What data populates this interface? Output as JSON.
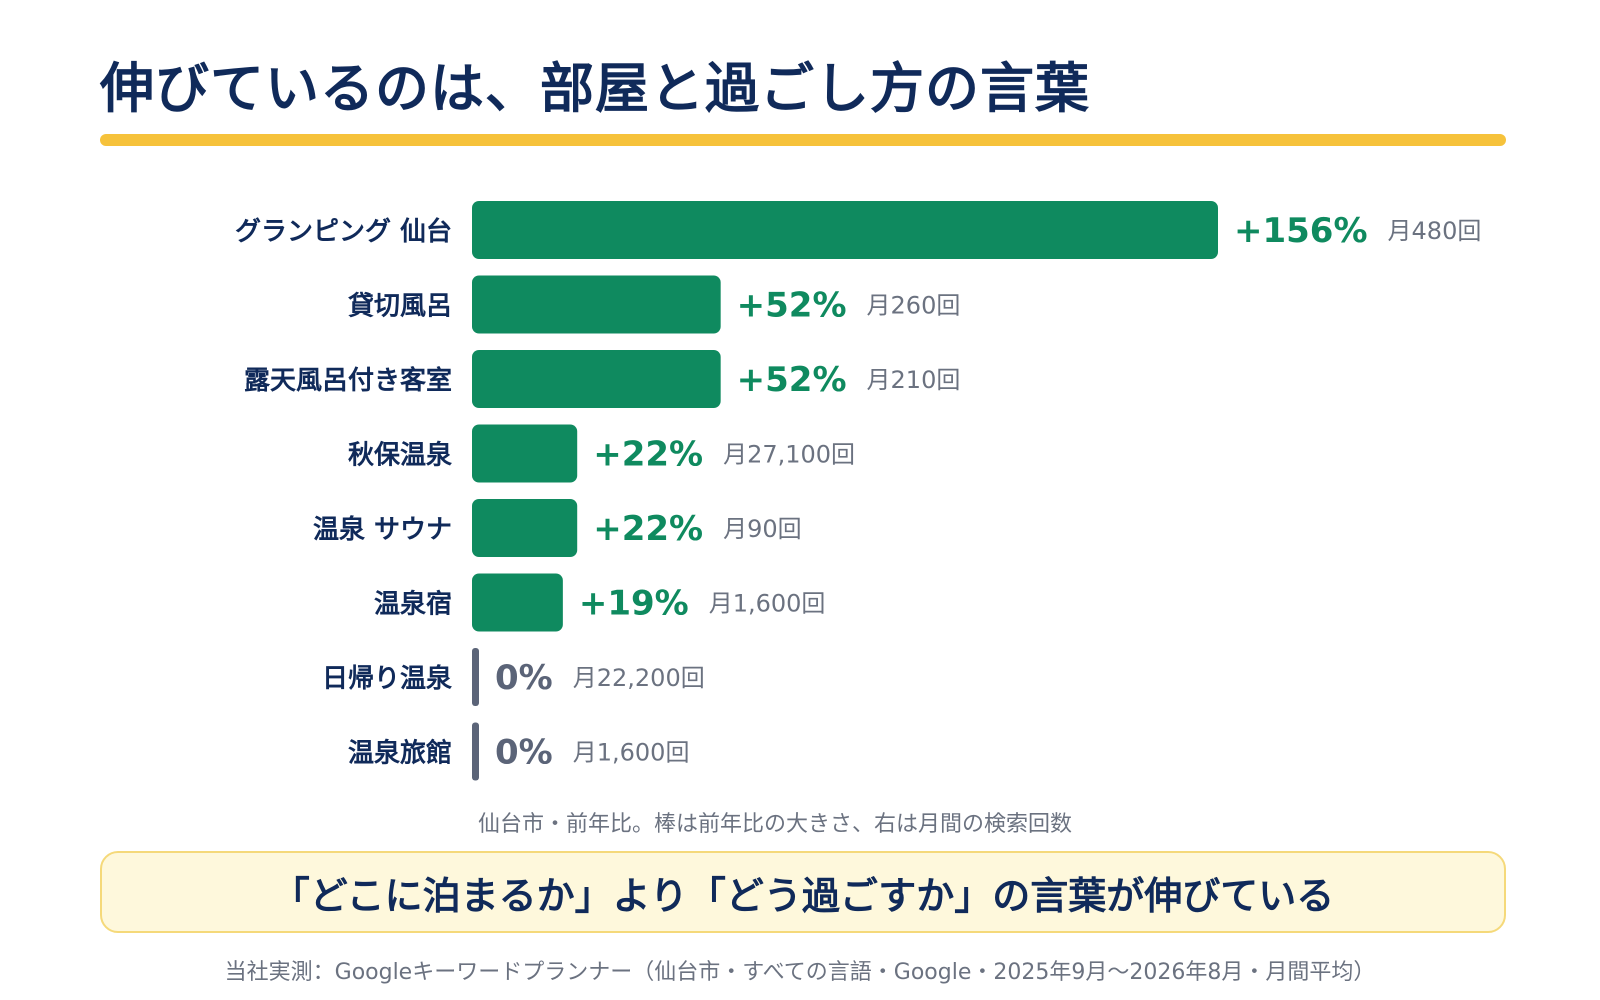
{
  "title": "伸びているのは、部屋と過ごし方の言葉",
  "caption": "仙台市・前年比。棒は前年比の大きさ、右は月間の検索回数",
  "callout": "「どこに泊まるか」より「どう過ごすか」の言葉が伸びている",
  "source": "当社実測：Googleキーワードプランナー（仙台市・すべての言語・Google・2025年9月〜2026年8月・月間平均）",
  "colors": {
    "title": "#102a5a",
    "accent_rule": "#f6c23b",
    "growth_bar": "#0f8a5f",
    "zero_bar": "#5b6478",
    "muted_text": "#6b7280",
    "callout_bg": "#fef8dc"
  },
  "chart_data": {
    "type": "bar",
    "orientation": "horizontal",
    "categories": [
      "グランピング 仙台",
      "貸切風呂",
      "露天風呂付き客室",
      "秋保温泉",
      "温泉 サウナ",
      "温泉宿",
      "日帰り温泉",
      "温泉旅館"
    ],
    "values": [
      156,
      52,
      52,
      22,
      22,
      19,
      0,
      0
    ],
    "value_labels": [
      "+156%",
      "+52%",
      "+52%",
      "+22%",
      "+22%",
      "+19%",
      "0%",
      "0%"
    ],
    "volume_labels": [
      "月480回",
      "月260回",
      "月210回",
      "月27,100回",
      "月90回",
      "月1,600回",
      "月22,200回",
      "月1,600回"
    ],
    "unit": "%",
    "xlim": [
      0,
      156
    ],
    "grid": false
  }
}
